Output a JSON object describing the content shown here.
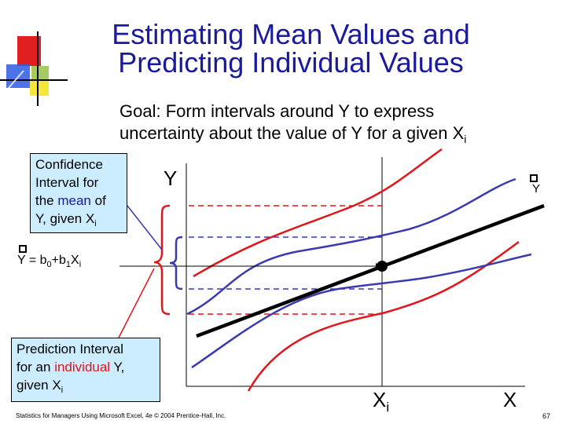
{
  "title": {
    "line1": "Estimating Mean Values and",
    "line2": "Predicting Individual Values"
  },
  "goal": {
    "line1": "Goal:  Form intervals around Y to express",
    "line2_prefix": "uncertainty about the value of Y for a given X",
    "line2_sub": "i"
  },
  "confidence_box": {
    "line1": "Confidence",
    "line2": "Interval for",
    "line3_prefix": "the ",
    "line3_highlight": "mean",
    "line3_suffix": " of",
    "line4_prefix": "Y, given X",
    "line4_sub": "i"
  },
  "prediction_box": {
    "line1": "Prediction Interval",
    "line2_prefix": "for an ",
    "line2_highlight": "individual",
    "line2_suffix": " Y,",
    "line3_prefix": "given X",
    "line3_sub": "i"
  },
  "regression_label": {
    "a": "Y = b",
    "b_sub": "0",
    "c": "+b",
    "d_sub": "1",
    "e": "X",
    "f_sub": "i"
  },
  "axes": {
    "y_label": "Y",
    "x_label": "X",
    "xi_label": "X",
    "xi_sub": "i",
    "yhat_label": "Y"
  },
  "footer": "Statistics for Managers Using Microsoft Excel, 4e © 2004 Prentice-Hall, Inc.",
  "page_number": "67",
  "colors": {
    "title": "#1a1a9e",
    "prediction": "#e1151a",
    "confidence": "#3a3ab0",
    "box_fill": "#ccecff",
    "regression_line": "#000000"
  },
  "icons": [
    "hat-icon",
    "decorative-logo"
  ]
}
